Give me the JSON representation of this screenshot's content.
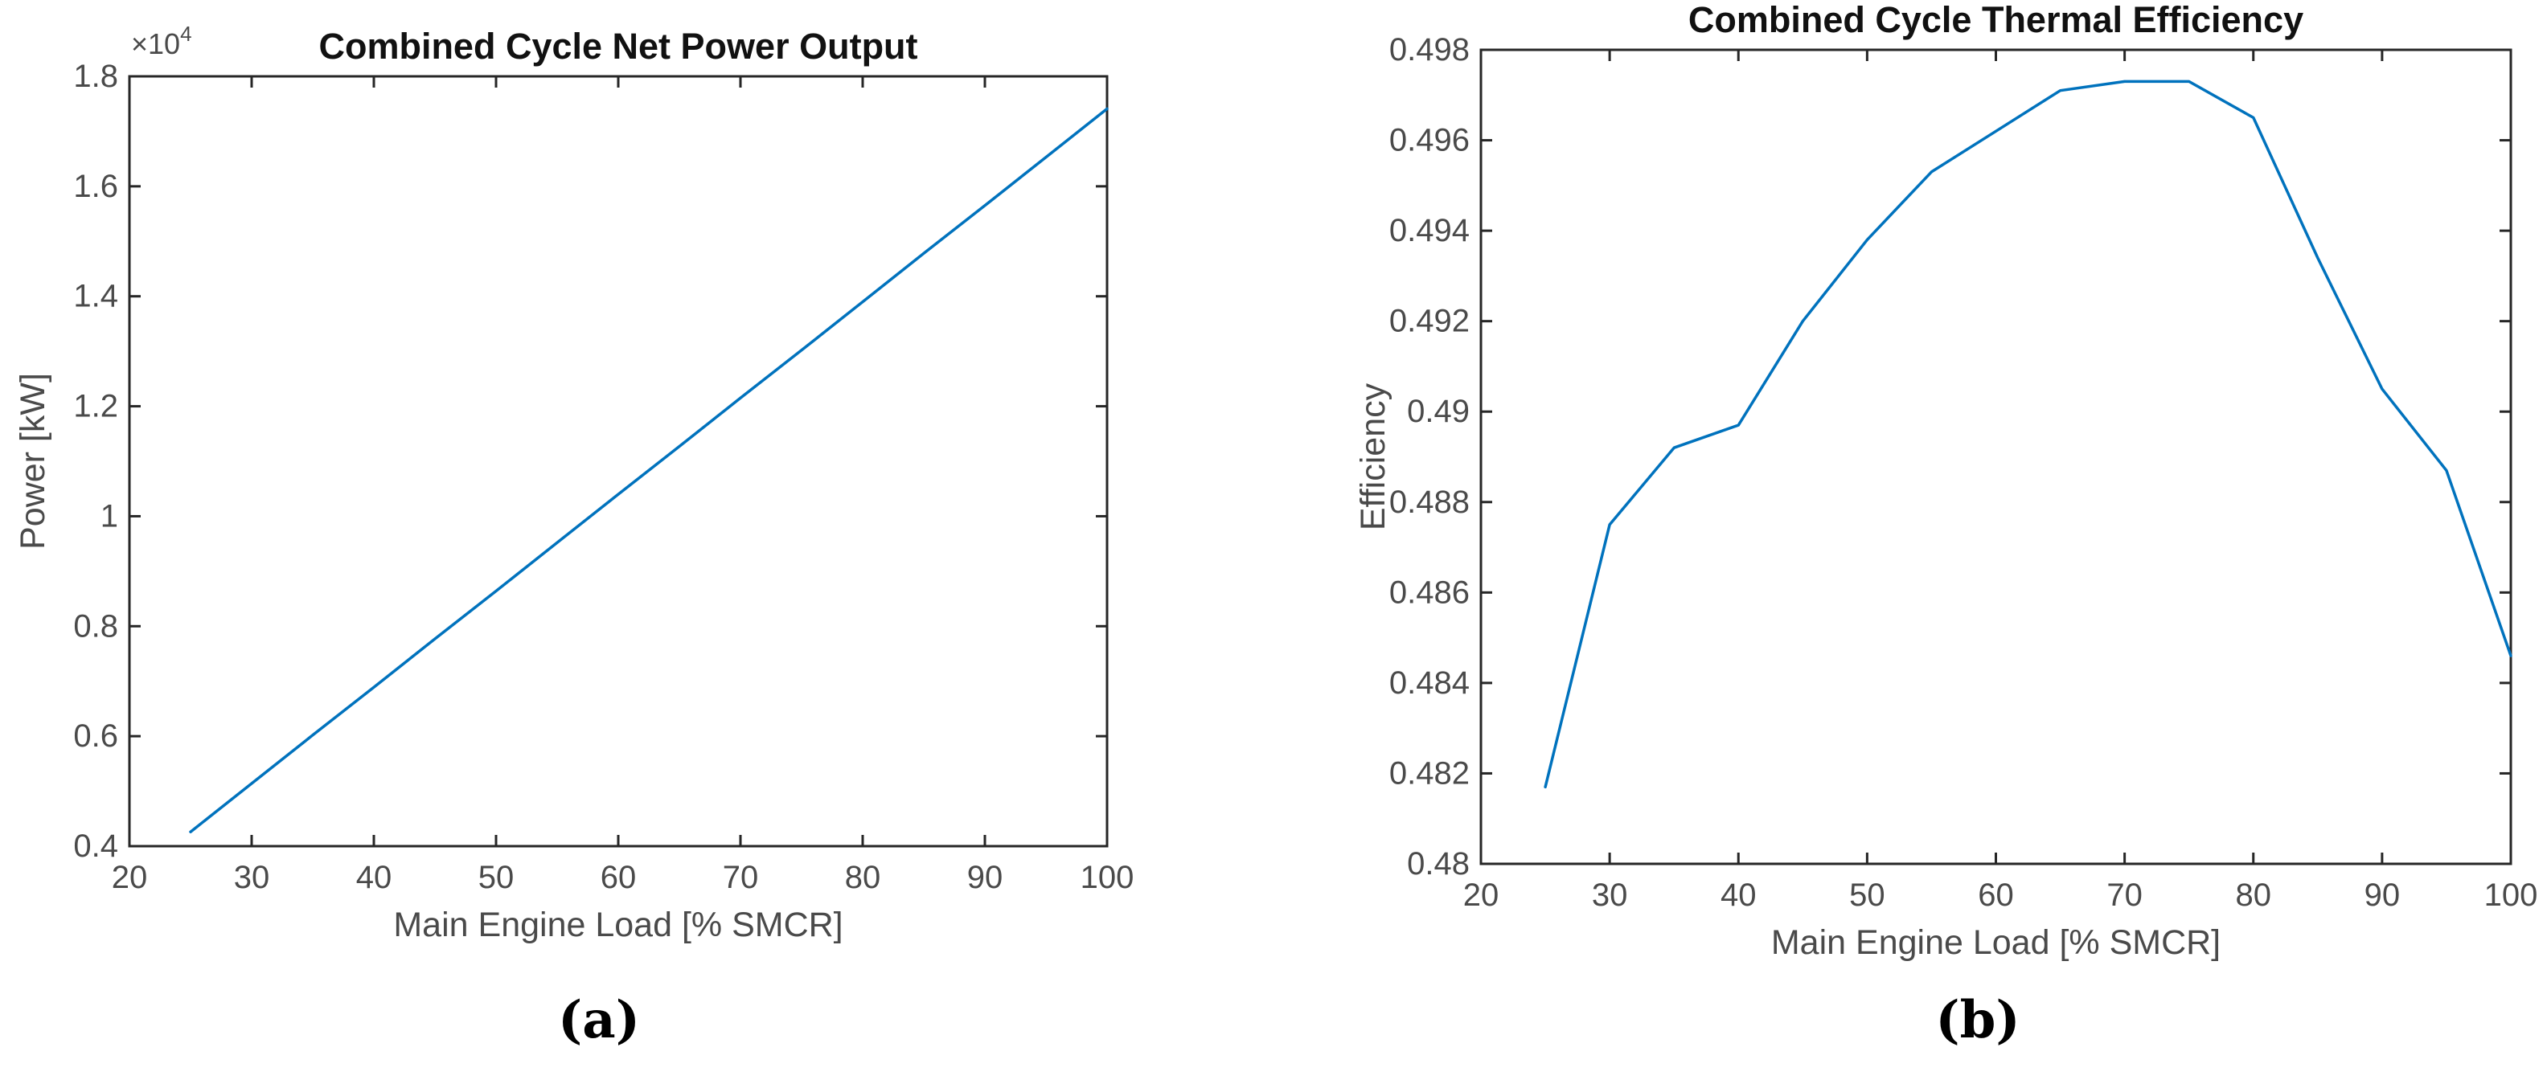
{
  "figure": {
    "captions": {
      "a": "(a)",
      "b": "(b)"
    },
    "line_color": "#0072BD",
    "frame_color": "#262626",
    "tick_text_color": "#4a4a4a",
    "title_color": "#111111",
    "background_color": "#ffffff"
  },
  "chart_data": [
    {
      "id": "net-power-output",
      "type": "line",
      "title": "Combined Cycle Net Power Output",
      "xlabel": "Main Engine Load [% SMCR]",
      "ylabel": "Power [kW]",
      "y_scale_label": {
        "text": "×10",
        "sup": "4"
      },
      "grid": false,
      "box": "on",
      "legend": null,
      "xlim": [
        20,
        100
      ],
      "ylim": [
        4000,
        18000
      ],
      "xticks": [
        {
          "v": 20,
          "label": "20"
        },
        {
          "v": 30,
          "label": "30"
        },
        {
          "v": 40,
          "label": "40"
        },
        {
          "v": 50,
          "label": "50"
        },
        {
          "v": 60,
          "label": "60"
        },
        {
          "v": 70,
          "label": "70"
        },
        {
          "v": 80,
          "label": "80"
        },
        {
          "v": 90,
          "label": "90"
        },
        {
          "v": 100,
          "label": "100"
        }
      ],
      "yticks": [
        {
          "v": 4000,
          "label": "0.4"
        },
        {
          "v": 6000,
          "label": "0.6"
        },
        {
          "v": 8000,
          "label": "0.8"
        },
        {
          "v": 10000,
          "label": "1"
        },
        {
          "v": 12000,
          "label": "1.2"
        },
        {
          "v": 14000,
          "label": "1.4"
        },
        {
          "v": 16000,
          "label": "1.6"
        },
        {
          "v": 18000,
          "label": "1.8"
        }
      ],
      "series": [
        {
          "name": "Net power output",
          "x": [
            25,
            30,
            35,
            40,
            45,
            50,
            55,
            60,
            65,
            70,
            75,
            80,
            85,
            90,
            95,
            100
          ],
          "y": [
            4260,
            5140,
            6020,
            6890,
            7770,
            8640,
            9520,
            10400,
            11270,
            12150,
            13020,
            13900,
            14780,
            15650,
            16530,
            17410
          ]
        }
      ]
    },
    {
      "id": "thermal-efficiency",
      "type": "line",
      "title": "Combined Cycle Thermal Efficiency",
      "xlabel": "Main Engine Load [% SMCR]",
      "ylabel": "Efficiency",
      "y_scale_label": null,
      "grid": false,
      "box": "on",
      "legend": null,
      "xlim": [
        20,
        100
      ],
      "ylim": [
        0.48,
        0.498
      ],
      "xticks": [
        {
          "v": 20,
          "label": "20"
        },
        {
          "v": 30,
          "label": "30"
        },
        {
          "v": 40,
          "label": "40"
        },
        {
          "v": 50,
          "label": "50"
        },
        {
          "v": 60,
          "label": "60"
        },
        {
          "v": 70,
          "label": "70"
        },
        {
          "v": 80,
          "label": "80"
        },
        {
          "v": 90,
          "label": "90"
        },
        {
          "v": 100,
          "label": "100"
        }
      ],
      "yticks": [
        {
          "v": 0.48,
          "label": "0.48"
        },
        {
          "v": 0.482,
          "label": "0.482"
        },
        {
          "v": 0.484,
          "label": "0.484"
        },
        {
          "v": 0.486,
          "label": "0.486"
        },
        {
          "v": 0.488,
          "label": "0.488"
        },
        {
          "v": 0.49,
          "label": "0.49"
        },
        {
          "v": 0.492,
          "label": "0.492"
        },
        {
          "v": 0.494,
          "label": "0.494"
        },
        {
          "v": 0.496,
          "label": "0.496"
        },
        {
          "v": 0.498,
          "label": "0.498"
        }
      ],
      "series": [
        {
          "name": "Thermal efficiency",
          "x": [
            25,
            30,
            35,
            40,
            45,
            50,
            55,
            60,
            65,
            70,
            75,
            80,
            85,
            90,
            95,
            100
          ],
          "y": [
            0.4817,
            0.4875,
            0.4892,
            0.4897,
            0.492,
            0.4938,
            0.4953,
            0.4962,
            0.4971,
            0.4973,
            0.4973,
            0.4965,
            0.4934,
            0.4905,
            0.4887,
            0.4846
          ]
        }
      ]
    }
  ]
}
